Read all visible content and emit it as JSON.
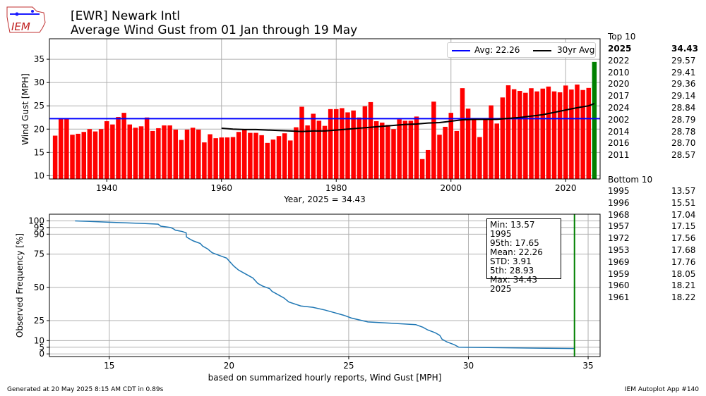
{
  "logo": {
    "text": "IEM"
  },
  "title_line1": "[EWR] Newark Intl",
  "title_line2": "Average Wind Gust from 01 Jan through 19 May",
  "footer_left": "Generated at 20 May 2025 8:15 AM CDT in 0.89s",
  "footer_right": "IEM Autoplot App #140",
  "top10_label": "Top 10",
  "top10": [
    {
      "year": "2025",
      "value": "34.43"
    },
    {
      "year": "2022",
      "value": "29.57"
    },
    {
      "year": "2010",
      "value": "29.41"
    },
    {
      "year": "2020",
      "value": "29.36"
    },
    {
      "year": "2017",
      "value": "29.14"
    },
    {
      "year": "2024",
      "value": "28.84"
    },
    {
      "year": "2002",
      "value": "28.79"
    },
    {
      "year": "2014",
      "value": "28.78"
    },
    {
      "year": "2016",
      "value": "28.70"
    },
    {
      "year": "2011",
      "value": "28.57"
    }
  ],
  "bottom10_label": "Bottom 10",
  "bottom10": [
    {
      "year": "1995",
      "value": "13.57"
    },
    {
      "year": "1996",
      "value": "15.51"
    },
    {
      "year": "1968",
      "value": "17.04"
    },
    {
      "year": "1957",
      "value": "17.15"
    },
    {
      "year": "1972",
      "value": "17.56"
    },
    {
      "year": "1953",
      "value": "17.68"
    },
    {
      "year": "1969",
      "value": "17.76"
    },
    {
      "year": "1959",
      "value": "18.05"
    },
    {
      "year": "1960",
      "value": "18.21"
    },
    {
      "year": "1961",
      "value": "18.22"
    }
  ],
  "colors": {
    "bar": "#ff0000",
    "current_bar": "#008000",
    "avg_line": "#0000ff",
    "climo_line": "#000000",
    "cdf_line": "#1f77b4",
    "marker_line": "#008000"
  },
  "chart_data": [
    {
      "type": "bar",
      "ylabel": "Wind Gust [MPH]",
      "xlabel": "Year, 2025 = 34.43",
      "xlim": [
        1930,
        2026
      ],
      "ylim": [
        9.3,
        39.4
      ],
      "xticks": [
        1940,
        1960,
        1980,
        2000,
        2020
      ],
      "yticks": [
        10,
        15,
        20,
        25,
        30,
        35
      ],
      "grid": true,
      "legend_position": "top-right",
      "legend": [
        "Avg: 22.26",
        "30yr Avg"
      ],
      "average": 22.26,
      "years": [
        1931,
        1932,
        1933,
        1934,
        1935,
        1936,
        1937,
        1938,
        1939,
        1940,
        1941,
        1942,
        1943,
        1944,
        1945,
        1946,
        1947,
        1948,
        1949,
        1950,
        1951,
        1952,
        1953,
        1954,
        1955,
        1956,
        1957,
        1958,
        1959,
        1960,
        1961,
        1962,
        1963,
        1964,
        1965,
        1966,
        1967,
        1968,
        1969,
        1970,
        1971,
        1972,
        1973,
        1974,
        1975,
        1976,
        1977,
        1978,
        1979,
        1980,
        1981,
        1982,
        1983,
        1984,
        1985,
        1986,
        1987,
        1988,
        1989,
        1990,
        1991,
        1992,
        1993,
        1994,
        1995,
        1996,
        1997,
        1998,
        1999,
        2000,
        2001,
        2002,
        2003,
        2004,
        2005,
        2006,
        2007,
        2008,
        2009,
        2010,
        2011,
        2012,
        2013,
        2014,
        2015,
        2016,
        2017,
        2018,
        2019,
        2020,
        2021,
        2022,
        2023,
        2024,
        2025
      ],
      "values": [
        18.6,
        22.2,
        22.3,
        18.8,
        19.0,
        19.4,
        20.0,
        19.5,
        20.0,
        21.7,
        21.0,
        22.6,
        23.5,
        21.0,
        20.3,
        20.6,
        22.5,
        19.6,
        20.2,
        20.8,
        20.8,
        19.9,
        17.68,
        19.9,
        20.3,
        19.9,
        17.15,
        18.9,
        18.05,
        18.21,
        18.22,
        18.3,
        19.4,
        19.9,
        19.2,
        19.2,
        18.7,
        17.04,
        17.76,
        18.5,
        19.1,
        17.56,
        20.4,
        24.8,
        20.8,
        23.3,
        21.8,
        20.7,
        24.3,
        24.3,
        24.5,
        23.6,
        24.0,
        22.5,
        24.9,
        25.8,
        21.7,
        21.4,
        20.9,
        20.0,
        22.1,
        21.8,
        21.8,
        22.7,
        13.57,
        15.51,
        25.9,
        18.8,
        20.5,
        23.5,
        19.6,
        28.79,
        24.4,
        22.2,
        18.3,
        22.0,
        25.1,
        21.2,
        26.8,
        29.41,
        28.57,
        28.2,
        27.8,
        28.78,
        28.1,
        28.7,
        29.14,
        28.1,
        27.9,
        29.36,
        28.5,
        29.57,
        28.4,
        28.84,
        34.43
      ],
      "climo_years": [
        1960,
        1962,
        1964,
        1966,
        1968,
        1970,
        1972,
        1974,
        1976,
        1978,
        1980,
        1982,
        1984,
        1986,
        1988,
        1990,
        1992,
        1994,
        1996,
        1998,
        2000,
        2002,
        2004,
        2006,
        2008,
        2010,
        2012,
        2014,
        2016,
        2018,
        2020,
        2022,
        2024,
        2025
      ],
      "climo_values": [
        20.2,
        20.0,
        19.9,
        19.9,
        19.8,
        19.7,
        19.6,
        19.5,
        19.6,
        19.6,
        19.8,
        20.0,
        20.2,
        20.4,
        20.6,
        20.8,
        21.0,
        21.1,
        21.3,
        21.4,
        21.7,
        22.0,
        22.1,
        22.1,
        22.1,
        22.3,
        22.5,
        22.8,
        23.1,
        23.6,
        24.1,
        24.6,
        25.0,
        25.5
      ]
    },
    {
      "type": "line",
      "ylabel": "Observed Frequency [%]",
      "xlabel": "based on summarized hourly reports, Wind Gust [MPH]",
      "xlim": [
        12.5,
        35.5
      ],
      "ylim": [
        -2,
        105
      ],
      "xticks": [
        15,
        20,
        25,
        30,
        35
      ],
      "yticks": [
        0,
        5,
        10,
        25,
        50,
        75,
        90,
        95,
        100
      ],
      "grid": true,
      "marker_x": 34.43,
      "stats": [
        "Min: 13.57 1995",
        "95th: 17.65",
        "Mean: 22.26",
        "STD: 3.91",
        "5th: 28.93",
        "Max: 34.43 2025"
      ],
      "x": [
        13.57,
        15.0,
        16.5,
        17.04,
        17.15,
        17.56,
        17.68,
        17.76,
        18.05,
        18.21,
        18.22,
        18.3,
        18.5,
        18.8,
        18.9,
        19.1,
        19.3,
        19.6,
        19.9,
        20.0,
        20.2,
        20.4,
        20.6,
        20.8,
        21.0,
        21.2,
        21.4,
        21.7,
        21.8,
        22.1,
        22.3,
        22.5,
        23.0,
        23.5,
        24.0,
        24.4,
        24.8,
        25.1,
        25.8,
        26.8,
        27.8,
        28.1,
        28.3,
        28.6,
        28.8,
        28.9,
        29.1,
        29.4,
        29.6,
        34.43
      ],
      "y": [
        100,
        99,
        98,
        97.5,
        96,
        95,
        94,
        93,
        92,
        91,
        88,
        87,
        85,
        83,
        81,
        79,
        76,
        74,
        72,
        70,
        66,
        63,
        61,
        59,
        57,
        53,
        51,
        49,
        47,
        44,
        42,
        39,
        36,
        35,
        33,
        31,
        29,
        27,
        24,
        23,
        22,
        20,
        18,
        16,
        14,
        11,
        9,
        7,
        5,
        4
      ]
    }
  ]
}
